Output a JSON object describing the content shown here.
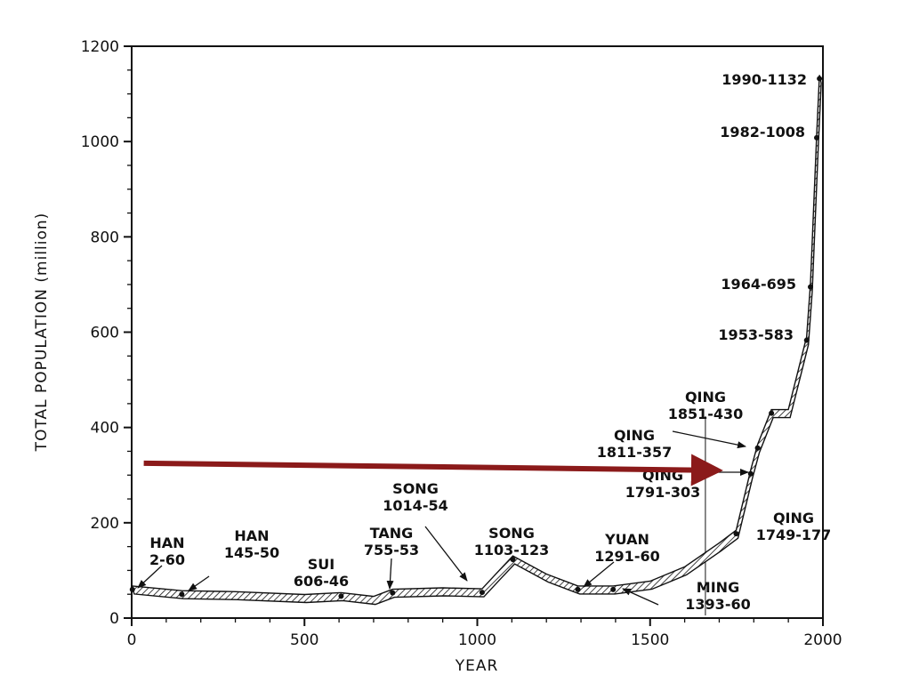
{
  "chart_data": {
    "type": "line",
    "title": "",
    "xlabel": "YEAR",
    "ylabel": "TOTAL POPULATION (million)",
    "xlim": [
      0,
      2000
    ],
    "ylim": [
      0,
      1200
    ],
    "x_ticks": [
      "0",
      "500",
      "1000",
      "1500",
      "2000"
    ],
    "y_ticks": [
      "0",
      "200",
      "400",
      "600",
      "800",
      "1000",
      "1200"
    ],
    "grid": false,
    "series": [
      {
        "values": [
          [
            2,
            60
          ],
          [
            145,
            50
          ],
          [
            300,
            48
          ],
          [
            500,
            42
          ],
          [
            606,
            46
          ],
          [
            700,
            38
          ],
          [
            755,
            53
          ],
          [
            900,
            56
          ],
          [
            1014,
            54
          ],
          [
            1060,
            90
          ],
          [
            1103,
            123
          ],
          [
            1200,
            85
          ],
          [
            1291,
            60
          ],
          [
            1393,
            60
          ],
          [
            1500,
            70
          ],
          [
            1600,
            100
          ],
          [
            1700,
            150
          ],
          [
            1749,
            177
          ],
          [
            1791,
            303
          ],
          [
            1811,
            357
          ],
          [
            1851,
            430
          ],
          [
            1900,
            430
          ],
          [
            1953,
            583
          ],
          [
            1964,
            695
          ],
          [
            1982,
            1008
          ],
          [
            1990,
            1132
          ]
        ]
      }
    ],
    "annotations": [
      {
        "lines": [
          "HAN",
          "2-60"
        ],
        "x": 2,
        "y": 60
      },
      {
        "lines": [
          "HAN",
          "145-50"
        ],
        "x": 145,
        "y": 50
      },
      {
        "lines": [
          "SUI",
          "606-46"
        ],
        "x": 606,
        "y": 46
      },
      {
        "lines": [
          "TANG",
          "755-53"
        ],
        "x": 755,
        "y": 53
      },
      {
        "lines": [
          "SONG",
          "1014-54"
        ],
        "x": 1014,
        "y": 54
      },
      {
        "lines": [
          "SONG",
          "1103-123"
        ],
        "x": 1103,
        "y": 123
      },
      {
        "lines": [
          "YUAN",
          "1291-60"
        ],
        "x": 1291,
        "y": 60
      },
      {
        "lines": [
          "MING",
          "1393-60"
        ],
        "x": 1393,
        "y": 60
      },
      {
        "lines": [
          "QING",
          "1749-177"
        ],
        "x": 1749,
        "y": 177
      },
      {
        "lines": [
          "QING",
          "1791-303"
        ],
        "x": 1791,
        "y": 303
      },
      {
        "lines": [
          "QING",
          "1811-357"
        ],
        "x": 1811,
        "y": 357
      },
      {
        "lines": [
          "QING",
          "1851-430"
        ],
        "x": 1851,
        "y": 430
      },
      {
        "lines": [
          "1953-583"
        ],
        "x": 1953,
        "y": 583
      },
      {
        "lines": [
          "1964-695"
        ],
        "x": 1964,
        "y": 695
      },
      {
        "lines": [
          "1982-1008"
        ],
        "x": 1982,
        "y": 1008
      },
      {
        "lines": [
          "1990-1132"
        ],
        "x": 1990,
        "y": 1132
      }
    ],
    "highlight_arrow": {
      "color": "#8b1a1a",
      "from": [
        35,
        325
      ],
      "to": [
        1660,
        310
      ]
    },
    "reference_line_x": 1660
  }
}
